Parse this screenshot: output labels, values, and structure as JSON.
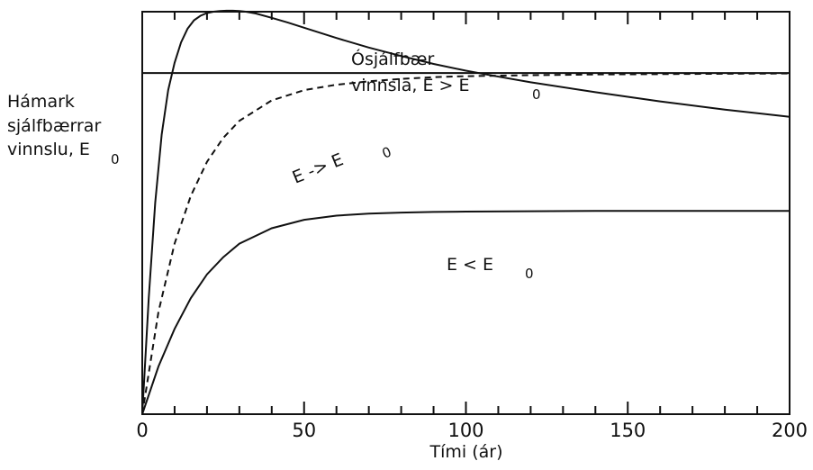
{
  "chart_data": {
    "type": "line",
    "xlabel": "Tími (ár)",
    "ylabel_lines": [
      "Hámark",
      "sjálfbærrar",
      "vinnslu, E"
    ],
    "ylabel_sub": "0",
    "xlim": [
      0,
      200
    ],
    "ylim": [
      0,
      1.18
    ],
    "x_ticks": [
      "0",
      "50",
      "100",
      "150",
      "200"
    ],
    "grid": false,
    "reference_line": {
      "y": 1.0
    },
    "series": [
      {
        "style": "solid",
        "x": [
          0,
          2,
          4,
          6,
          8,
          10,
          12,
          14,
          16,
          18,
          20,
          22,
          24,
          26,
          28,
          30,
          32,
          35,
          40,
          45,
          50,
          60,
          70,
          80,
          90,
          100,
          108,
          120,
          140,
          160,
          180,
          200
        ],
        "y": [
          0,
          0.34,
          0.62,
          0.82,
          0.95,
          1.03,
          1.09,
          1.13,
          1.155,
          1.168,
          1.176,
          1.18,
          1.182,
          1.183,
          1.183,
          1.182,
          1.18,
          1.175,
          1.162,
          1.148,
          1.133,
          1.103,
          1.075,
          1.05,
          1.027,
          1.007,
          0.993,
          0.973,
          0.944,
          0.917,
          0.893,
          0.872
        ]
      },
      {
        "style": "dashed",
        "x": [
          0,
          5,
          10,
          15,
          20,
          25,
          30,
          40,
          50,
          60,
          70,
          80,
          90,
          100,
          120,
          140,
          160,
          180,
          200
        ],
        "y": [
          0,
          0.3,
          0.5,
          0.64,
          0.74,
          0.81,
          0.86,
          0.92,
          0.95,
          0.966,
          0.976,
          0.983,
          0.988,
          0.991,
          0.994,
          0.996,
          0.997,
          0.998,
          0.999
        ]
      },
      {
        "style": "solid",
        "x": [
          0,
          5,
          10,
          15,
          20,
          25,
          30,
          40,
          50,
          60,
          70,
          80,
          90,
          100,
          120,
          140,
          160,
          180,
          200
        ],
        "y": [
          0,
          0.14,
          0.25,
          0.34,
          0.41,
          0.46,
          0.5,
          0.545,
          0.57,
          0.582,
          0.588,
          0.591,
          0.593,
          0.594,
          0.595,
          0.596,
          0.596,
          0.596,
          0.596
        ]
      }
    ],
    "annotations": {
      "overuse_line1": "Ósjálfbær",
      "overuse_line2": "vinnsla,  E  >  E",
      "overuse_sub": "0",
      "converge_text": "E  ->  E",
      "converge_sub": "0",
      "under_text": "E  <  E",
      "under_sub": "0"
    }
  }
}
